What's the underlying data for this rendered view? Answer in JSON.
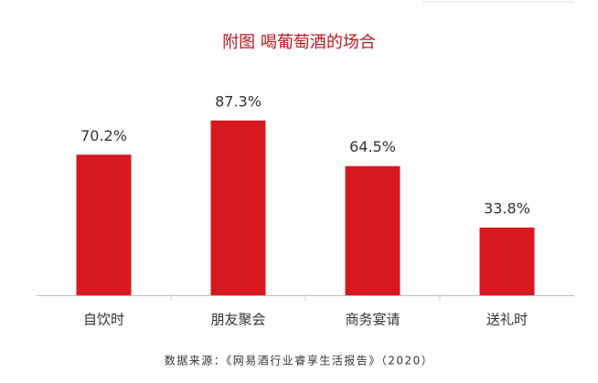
{
  "chart_data": {
    "type": "bar",
    "title": "附图  喝葡萄酒的场合",
    "categories": [
      "自饮时",
      "朋友聚会",
      "商务宴请",
      "送礼时"
    ],
    "values": [
      70.2,
      87.3,
      64.5,
      33.8
    ],
    "value_labels": [
      "70.2%",
      "87.3%",
      "64.5%",
      "33.8%"
    ],
    "color": "#d7191f",
    "source": "数据来源：《网易酒行业睿享生活报告》（2020）"
  }
}
